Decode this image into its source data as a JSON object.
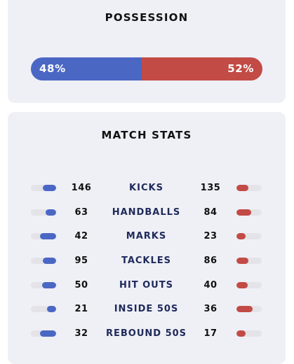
{
  "possession": {
    "title": "POSSESSION",
    "home_pct": 48,
    "away_pct": 52,
    "home_label": "48%",
    "away_label": "52%"
  },
  "match_stats": {
    "title": "MATCH STATS",
    "rows": [
      {
        "label": "KICKS",
        "home": "146",
        "away": "135",
        "home_fill": 0.52,
        "away_fill": 0.48
      },
      {
        "label": "HANDBALLS",
        "home": "63",
        "away": "84",
        "home_fill": 0.43,
        "away_fill": 0.57
      },
      {
        "label": "MARKS",
        "home": "42",
        "away": "23",
        "home_fill": 0.65,
        "away_fill": 0.35
      },
      {
        "label": "TACKLES",
        "home": "95",
        "away": "86",
        "home_fill": 0.52,
        "away_fill": 0.48
      },
      {
        "label": "HIT OUTS",
        "home": "50",
        "away": "40",
        "home_fill": 0.56,
        "away_fill": 0.44
      },
      {
        "label": "INSIDE 50S",
        "home": "21",
        "away": "36",
        "home_fill": 0.37,
        "away_fill": 0.63
      },
      {
        "label": "REBOUND 50S",
        "home": "32",
        "away": "17",
        "home_fill": 0.65,
        "away_fill": 0.35
      }
    ]
  },
  "colors": {
    "home": "#4a67c4",
    "away": "#c24b45",
    "card_bg": "#efeff6"
  }
}
